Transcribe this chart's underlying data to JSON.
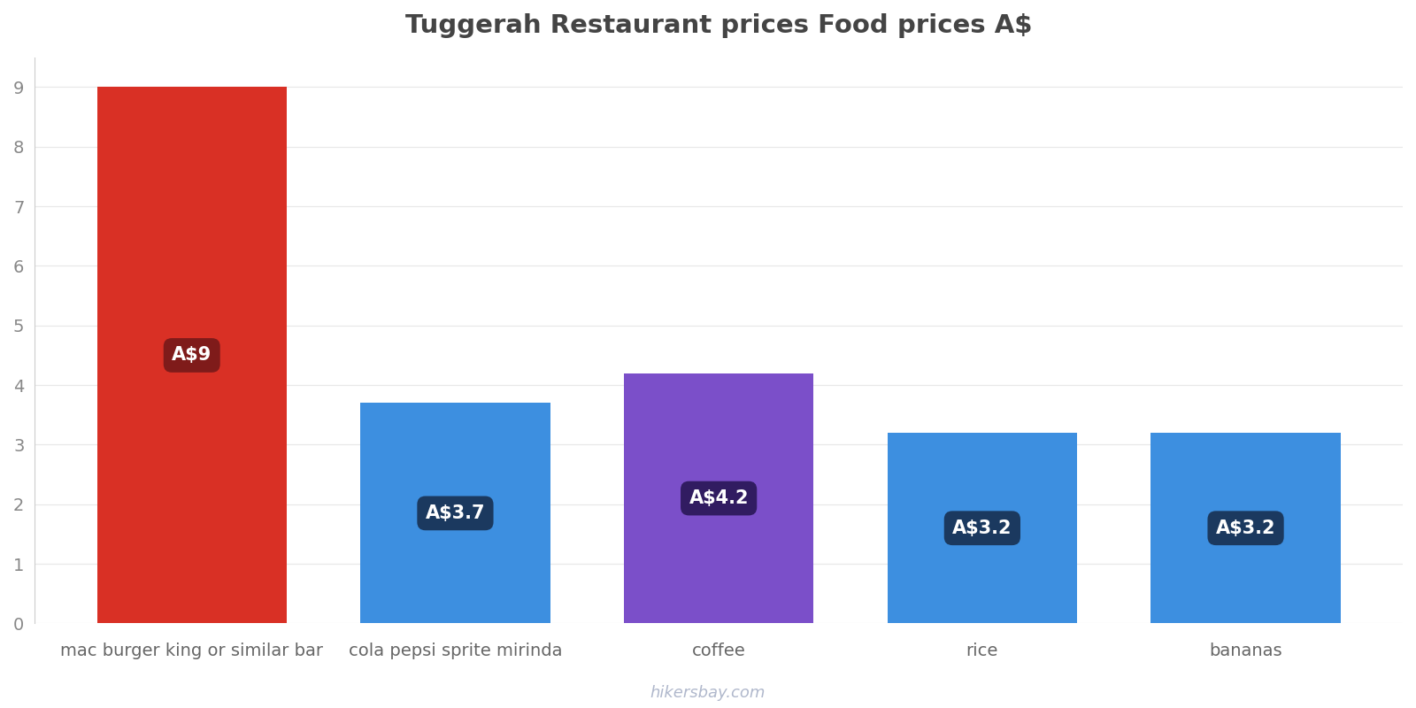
{
  "title": "Tuggerah Restaurant prices Food prices A$",
  "categories": [
    "mac burger king or similar bar",
    "cola pepsi sprite mirinda",
    "coffee",
    "rice",
    "bananas"
  ],
  "values": [
    9,
    3.7,
    4.2,
    3.2,
    3.2
  ],
  "bar_colors": [
    "#d93025",
    "#3d8fe0",
    "#7b4fc9",
    "#3d8fe0",
    "#3d8fe0"
  ],
  "labels": [
    "A$9",
    "A$3.7",
    "A$4.2",
    "A$3.2",
    "A$3.2"
  ],
  "label_box_colors": [
    "#7a1a1a",
    "#1a3558",
    "#2d1a5c",
    "#1a3558",
    "#1a3558"
  ],
  "ylim": [
    0,
    9.5
  ],
  "yticks": [
    0,
    1,
    2,
    3,
    4,
    5,
    6,
    7,
    8,
    9
  ],
  "background_color": "#ffffff",
  "grid_color": "#e8e8e8",
  "title_fontsize": 21,
  "tick_fontsize": 14,
  "label_fontsize": 15,
  "watermark": "hikersbay.com",
  "watermark_color": "#b0b8cc",
  "bar_width": 0.72
}
